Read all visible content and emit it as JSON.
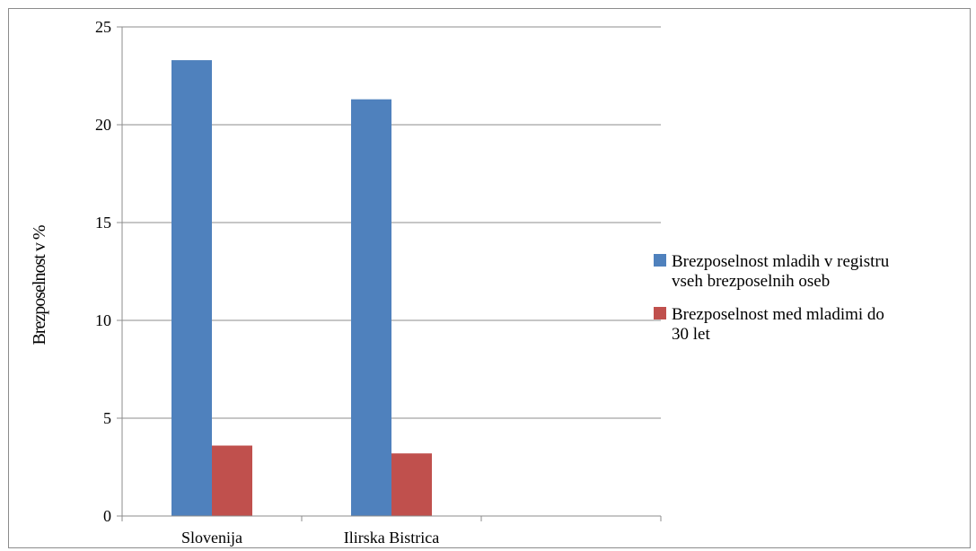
{
  "chart_data": {
    "type": "bar",
    "categories": [
      "Slovenija",
      "Ilirska Bistrica",
      ""
    ],
    "series": [
      {
        "name": "Brezposelnost mladih v registru vseh brezposelnih oseb",
        "legend_lines": [
          "Brezposelnost mladih v registru",
          "vseh brezposelnih oseb"
        ],
        "color": "#4f81bd",
        "values": [
          23.3,
          21.3,
          null
        ]
      },
      {
        "name": "Brezposelnost med mladimi do 30 let",
        "legend_lines": [
          "Brezposelnost med mladimi do",
          "30 let"
        ],
        "color": "#c0504d",
        "values": [
          3.6,
          3.2,
          null
        ]
      }
    ],
    "title": "",
    "xlabel": "",
    "ylabel": "Brezposelnost v %",
    "ylim": [
      0,
      25
    ],
    "yticks": [
      0,
      5,
      10,
      15,
      20,
      25
    ],
    "grid": true,
    "legend": "right"
  }
}
